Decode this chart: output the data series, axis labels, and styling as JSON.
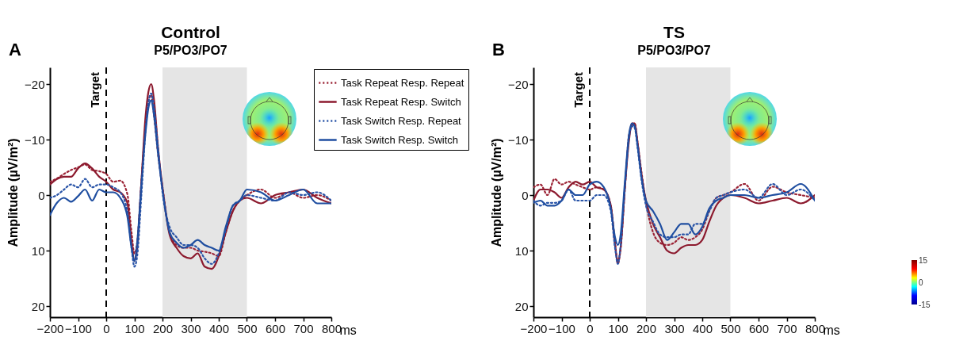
{
  "chart_data": [
    {
      "type": "line",
      "title": "Control",
      "subtitle": "P5/PO3/PO7",
      "xlabel": "ms",
      "ylabel": "Amplitude (µV/m²)",
      "annotations": [
        "A"
      ],
      "legend": "top right",
      "grid": false,
      "xlim": [
        -200,
        800
      ],
      "xticks": [
        -200,
        -100,
        0,
        100,
        200,
        300,
        400,
        500,
        600,
        700,
        800
      ],
      "ylim": [
        22,
        -23
      ],
      "yticks": [
        -20,
        -10,
        0,
        10,
        20
      ],
      "ref_lines": [
        {
          "axis": "x",
          "value": 0,
          "label": "Target",
          "line_style": "dashed",
          "color": "#000000"
        }
      ],
      "bands": [
        {
          "axis": "x",
          "from": 200,
          "to": 500,
          "color": "#e5e5e5"
        }
      ],
      "x": [
        -200,
        -175,
        -150,
        -125,
        -100,
        -75,
        -50,
        -25,
        0,
        25,
        50,
        75,
        90,
        100,
        110,
        125,
        140,
        150,
        160,
        170,
        185,
        200,
        225,
        250,
        275,
        300,
        325,
        350,
        375,
        400,
        425,
        450,
        475,
        500,
        550,
        600,
        650,
        700,
        750,
        800
      ],
      "series": [
        {
          "name": "Task Repeat Resp. Repeat",
          "color": "#9b2335",
          "line_style": "dotted",
          "values": [
            -2.4,
            -3,
            -3.8,
            -4.5,
            -5,
            -5.5,
            -4.5,
            -4.3,
            -3.8,
            -2.4,
            -2.6,
            -0.2,
            6.7,
            10.5,
            8.6,
            -2.4,
            -12.9,
            -17,
            -18,
            -14.3,
            -7,
            -1.4,
            6.7,
            9,
            9.5,
            9.5,
            10,
            10.2,
            10.5,
            11,
            6.7,
            2.9,
            1,
            0,
            -1,
            0.5,
            -0.5,
            0.5,
            0,
            1
          ]
        },
        {
          "name": "Task Repeat Resp. Switch",
          "color": "#8c1a2e",
          "line_style": "solid",
          "values": [
            -1.9,
            -2.9,
            -3.3,
            -3.3,
            -4.8,
            -5.7,
            -4.8,
            -3.3,
            -2.4,
            -1,
            -0.5,
            1.4,
            8.6,
            11.9,
            9.5,
            -2.4,
            -14.3,
            -18.6,
            -20,
            -17.1,
            -8.1,
            -1.4,
            7.1,
            9.5,
            11,
            11.4,
            10.5,
            12.9,
            13.3,
            11,
            6.7,
            2.9,
            1,
            0.5,
            1.5,
            0,
            -0.5,
            -1,
            0.5,
            1.5
          ]
        },
        {
          "name": "Task Switch Resp. Repeat",
          "color": "#2a55a8",
          "line_style": "dotted",
          "values": [
            0.5,
            0,
            -1,
            -1.9,
            -1.4,
            -2.9,
            -1.4,
            -1.9,
            -1.9,
            -1.4,
            -0.5,
            2.9,
            9.5,
            12.9,
            11,
            0,
            -11.9,
            -16.7,
            -18.3,
            -15.7,
            -8.1,
            -0.5,
            5.7,
            7.6,
            9,
            9,
            9.5,
            11.4,
            12.4,
            10.5,
            6.2,
            1.9,
            1,
            0,
            0.5,
            1,
            -0.5,
            0,
            -0.5,
            1
          ]
        },
        {
          "name": "Task Switch Resp. Switch",
          "color": "#1f4ea0",
          "line_style": "solid",
          "values": [
            3.6,
            1.4,
            0.5,
            1.2,
            0.2,
            -1,
            1,
            -1,
            -0.5,
            -0.5,
            0.5,
            3.8,
            9.5,
            11.9,
            8.6,
            -1.9,
            -11.4,
            -15.7,
            -17.1,
            -14.3,
            -7.1,
            -1,
            6.7,
            8.6,
            9.5,
            9,
            8.1,
            9,
            9.5,
            10,
            5.7,
            1.9,
            1,
            -1,
            -0.5,
            1,
            0,
            -1,
            1.5,
            1.5
          ]
        }
      ]
    },
    {
      "type": "line",
      "title": "TS",
      "subtitle": "P5/PO3/PO7",
      "xlabel": "ms",
      "ylabel": "Amplitude (µV/m²)",
      "annotations": [
        "B"
      ],
      "grid": false,
      "xlim": [
        -200,
        800
      ],
      "xticks": [
        -200,
        -100,
        0,
        100,
        200,
        300,
        400,
        500,
        600,
        700,
        800
      ],
      "ylim": [
        22,
        -23
      ],
      "yticks": [
        -20,
        -10,
        0,
        10,
        20
      ],
      "clim": [
        -15,
        15
      ],
      "cticks": [
        -15,
        0,
        15
      ],
      "ref_lines": [
        {
          "axis": "x",
          "value": 0,
          "label": "Target",
          "line_style": "dashed",
          "color": "#000000"
        }
      ],
      "bands": [
        {
          "axis": "x",
          "from": 200,
          "to": 500,
          "color": "#e5e5e5"
        }
      ],
      "x": [
        -200,
        -175,
        -150,
        -125,
        -100,
        -75,
        -50,
        -25,
        0,
        25,
        50,
        75,
        90,
        100,
        110,
        125,
        140,
        150,
        160,
        170,
        185,
        200,
        225,
        250,
        275,
        300,
        325,
        350,
        375,
        400,
        425,
        450,
        475,
        500,
        550,
        600,
        650,
        700,
        750,
        800
      ],
      "series": [
        {
          "color": "#9b2335",
          "line_style": "dotted",
          "values": [
            -1.4,
            -1.9,
            0,
            -2.9,
            -1.9,
            -2.4,
            -1.9,
            -1.4,
            -1,
            -1.4,
            -1,
            1.9,
            8.6,
            12.4,
            9.5,
            -1,
            -11,
            -12.4,
            -12.9,
            -9.5,
            -3.8,
            1.4,
            6.7,
            8.6,
            9,
            8.6,
            7.6,
            8.1,
            7.6,
            6.2,
            2.9,
            0.5,
            0,
            -0.5,
            -2,
            1,
            -1.5,
            -0.5,
            0,
            0.5
          ]
        },
        {
          "color": "#8c1a2e",
          "line_style": "solid",
          "values": [
            1,
            -1,
            -1,
            -0.5,
            0.5,
            -1.4,
            -2.4,
            -1.9,
            -2.4,
            -1.4,
            -1,
            1.9,
            9,
            11.9,
            9.5,
            -1.4,
            -10,
            -12.9,
            -12.9,
            -9.5,
            -3.3,
            1,
            5.2,
            7.6,
            10,
            10.5,
            9.5,
            9,
            9,
            8.1,
            4.8,
            1.9,
            0.5,
            0,
            0.5,
            1.5,
            1,
            0.5,
            1.5,
            0
          ]
        },
        {
          "color": "#2a55a8",
          "line_style": "dotted",
          "values": [
            1,
            1.9,
            1.4,
            1.4,
            1,
            -1,
            1,
            1,
            1,
            0,
            0,
            2.9,
            9.5,
            12.4,
            9,
            -1.4,
            -10.5,
            -12.4,
            -12.1,
            -8.6,
            -2.4,
            1.9,
            4.8,
            7.1,
            7.6,
            7.6,
            7.1,
            7.1,
            5.2,
            5.2,
            2.9,
            0.5,
            0,
            -0.5,
            -1,
            0.5,
            -2,
            0,
            -1,
            1
          ]
        },
        {
          "color": "#1f4ea0",
          "line_style": "solid",
          "values": [
            1.4,
            1,
            1.9,
            1.9,
            1,
            -1,
            0,
            0,
            -1.9,
            -2.4,
            -1.4,
            2.4,
            7.6,
            9,
            7.1,
            -2.4,
            -11,
            -12.9,
            -12.4,
            -9,
            -2.9,
            1,
            2.9,
            5.2,
            8.1,
            6.7,
            5.2,
            5.2,
            7.1,
            5.7,
            2.4,
            1,
            0.5,
            0,
            0,
            0.5,
            0,
            -0.5,
            -2,
            1
          ]
        }
      ]
    }
  ]
}
